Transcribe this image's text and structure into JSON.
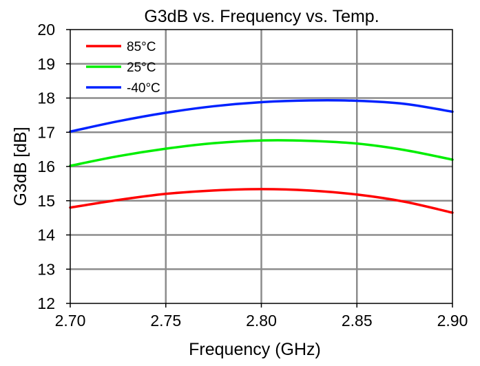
{
  "chart_data": {
    "type": "line",
    "title": "G3dB vs. Frequency vs. Temp.",
    "xlabel": "Frequency (GHz)",
    "ylabel": "G3dB [dB]",
    "xlim": [
      2.7,
      2.9
    ],
    "ylim": [
      12,
      20
    ],
    "x_ticks": [
      "2.70",
      "2.75",
      "2.80",
      "2.85",
      "2.90"
    ],
    "y_ticks": [
      "12",
      "13",
      "14",
      "15",
      "16",
      "17",
      "18",
      "19",
      "20"
    ],
    "grid": true,
    "legend_position": "top-left",
    "x": [
      2.7,
      2.725,
      2.75,
      2.775,
      2.8,
      2.825,
      2.85,
      2.875,
      2.9
    ],
    "series": [
      {
        "name": "85°C",
        "color": "#ff0000",
        "values": [
          14.8,
          15.02,
          15.2,
          15.3,
          15.34,
          15.3,
          15.18,
          14.97,
          14.65
        ]
      },
      {
        "name": "25°C",
        "color": "#00ee00",
        "values": [
          16.02,
          16.3,
          16.52,
          16.68,
          16.76,
          16.75,
          16.67,
          16.48,
          16.2
        ]
      },
      {
        "name": "-40°C",
        "color": "#0022ff",
        "values": [
          17.02,
          17.32,
          17.57,
          17.76,
          17.88,
          17.93,
          17.92,
          17.83,
          17.6
        ]
      }
    ]
  }
}
